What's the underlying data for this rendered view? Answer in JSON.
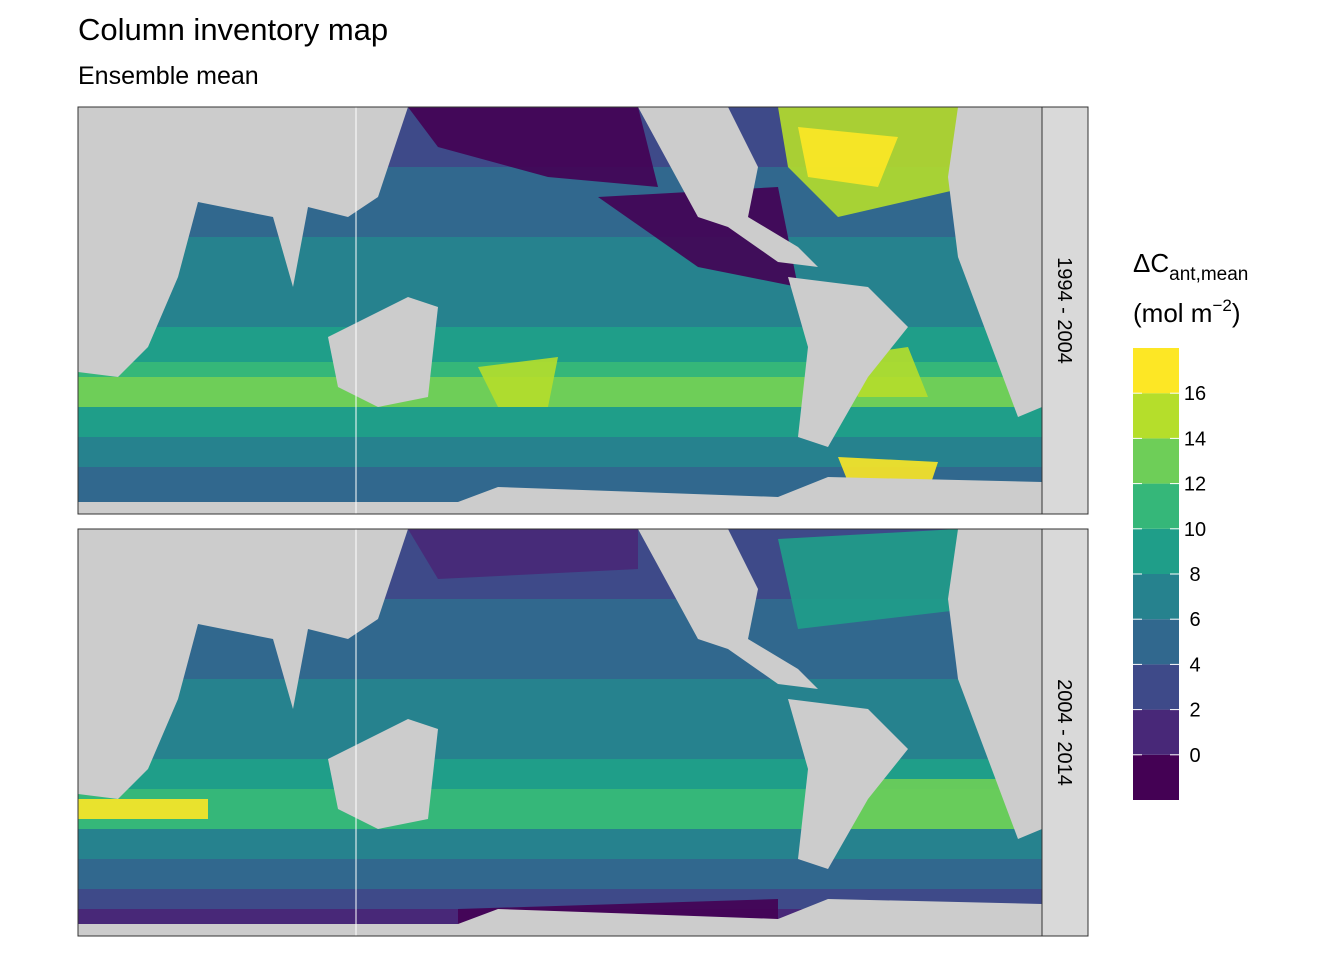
{
  "header": {
    "title": "Column inventory map",
    "subtitle": "Ensemble mean"
  },
  "panels": [
    {
      "label": "1994 - 2004"
    },
    {
      "label": "2004 - 2014"
    }
  ],
  "legend": {
    "title": "ΔC",
    "title_subscript": "ant,mean",
    "unit_prefix": "(mol m",
    "unit_superscript": "−2",
    "unit_suffix": ")",
    "lim": [
      -2,
      18
    ],
    "ticks": [
      0,
      2,
      4,
      6,
      8,
      10,
      12,
      14,
      16
    ],
    "colors": [
      "#440154",
      "#482878",
      "#3e4a89",
      "#31688e",
      "#26828e",
      "#1f9e89",
      "#35b779",
      "#6ece58",
      "#b5de2b",
      "#fde725"
    ]
  }
}
